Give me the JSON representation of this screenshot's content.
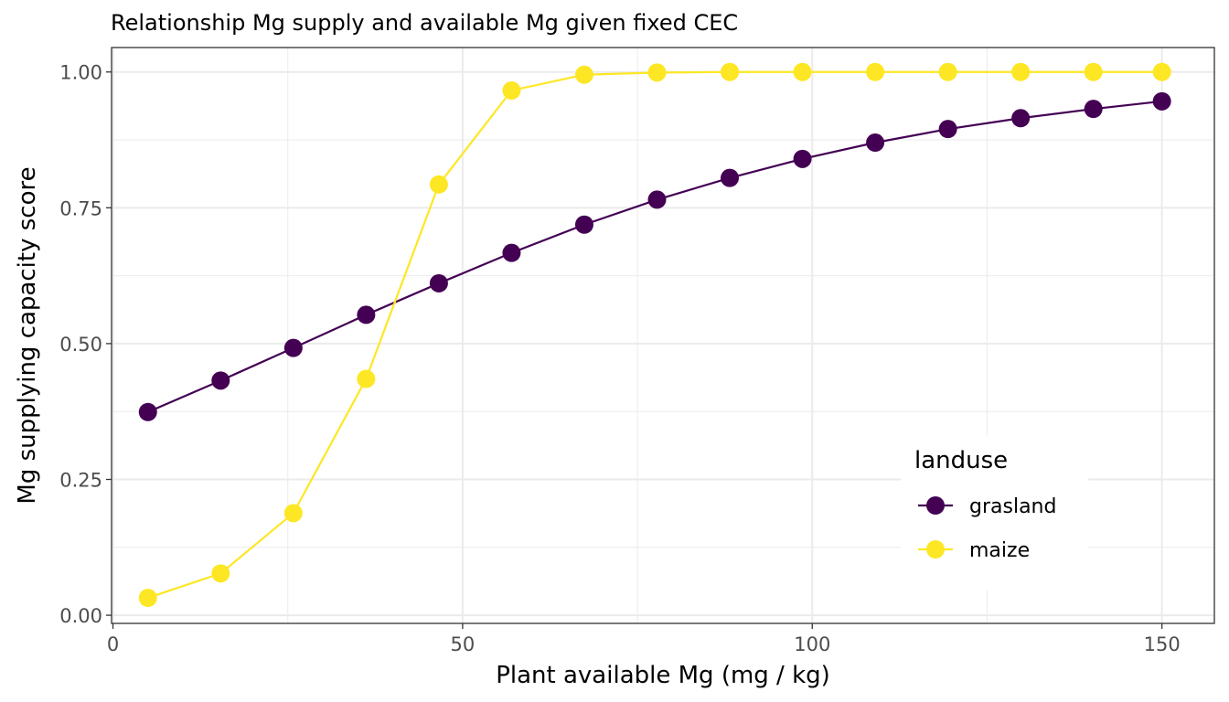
{
  "chart_data": {
    "type": "line",
    "title": "Relationship Mg supply and available Mg given fixed CEC",
    "xlabel": "Plant available Mg (mg / kg)",
    "ylabel": "Mg supplying capacity score",
    "xlim": [
      -0.2,
      157.5
    ],
    "ylim": [
      -0.015,
      1.045
    ],
    "x_ticks": [
      0,
      50,
      100,
      150
    ],
    "x_tick_labels": [
      "0",
      "50",
      "100",
      "150"
    ],
    "y_ticks": [
      0.0,
      0.25,
      0.5,
      0.75,
      1.0
    ],
    "y_tick_labels": [
      "0.00",
      "0.25",
      "0.50",
      "0.75",
      "1.00"
    ],
    "grid": true,
    "legend": {
      "title": "landuse",
      "position": "bottom-right"
    },
    "x": [
      5,
      15.4,
      25.8,
      36.2,
      46.6,
      57,
      67.4,
      77.8,
      88.2,
      98.6,
      109,
      119.4,
      129.8,
      140.2,
      150
    ],
    "series": [
      {
        "name": "grasland",
        "color": "#440154",
        "values": [
          0.374,
          0.432,
          0.492,
          0.553,
          0.611,
          0.667,
          0.719,
          0.765,
          0.805,
          0.84,
          0.87,
          0.895,
          0.915,
          0.932,
          0.946
        ]
      },
      {
        "name": "maize",
        "color": "#FDE725",
        "values": [
          0.032,
          0.077,
          0.188,
          0.435,
          0.793,
          0.966,
          0.995,
          0.999,
          1.0,
          1.0,
          1.0,
          1.0,
          1.0,
          1.0,
          1.0
        ]
      }
    ]
  }
}
